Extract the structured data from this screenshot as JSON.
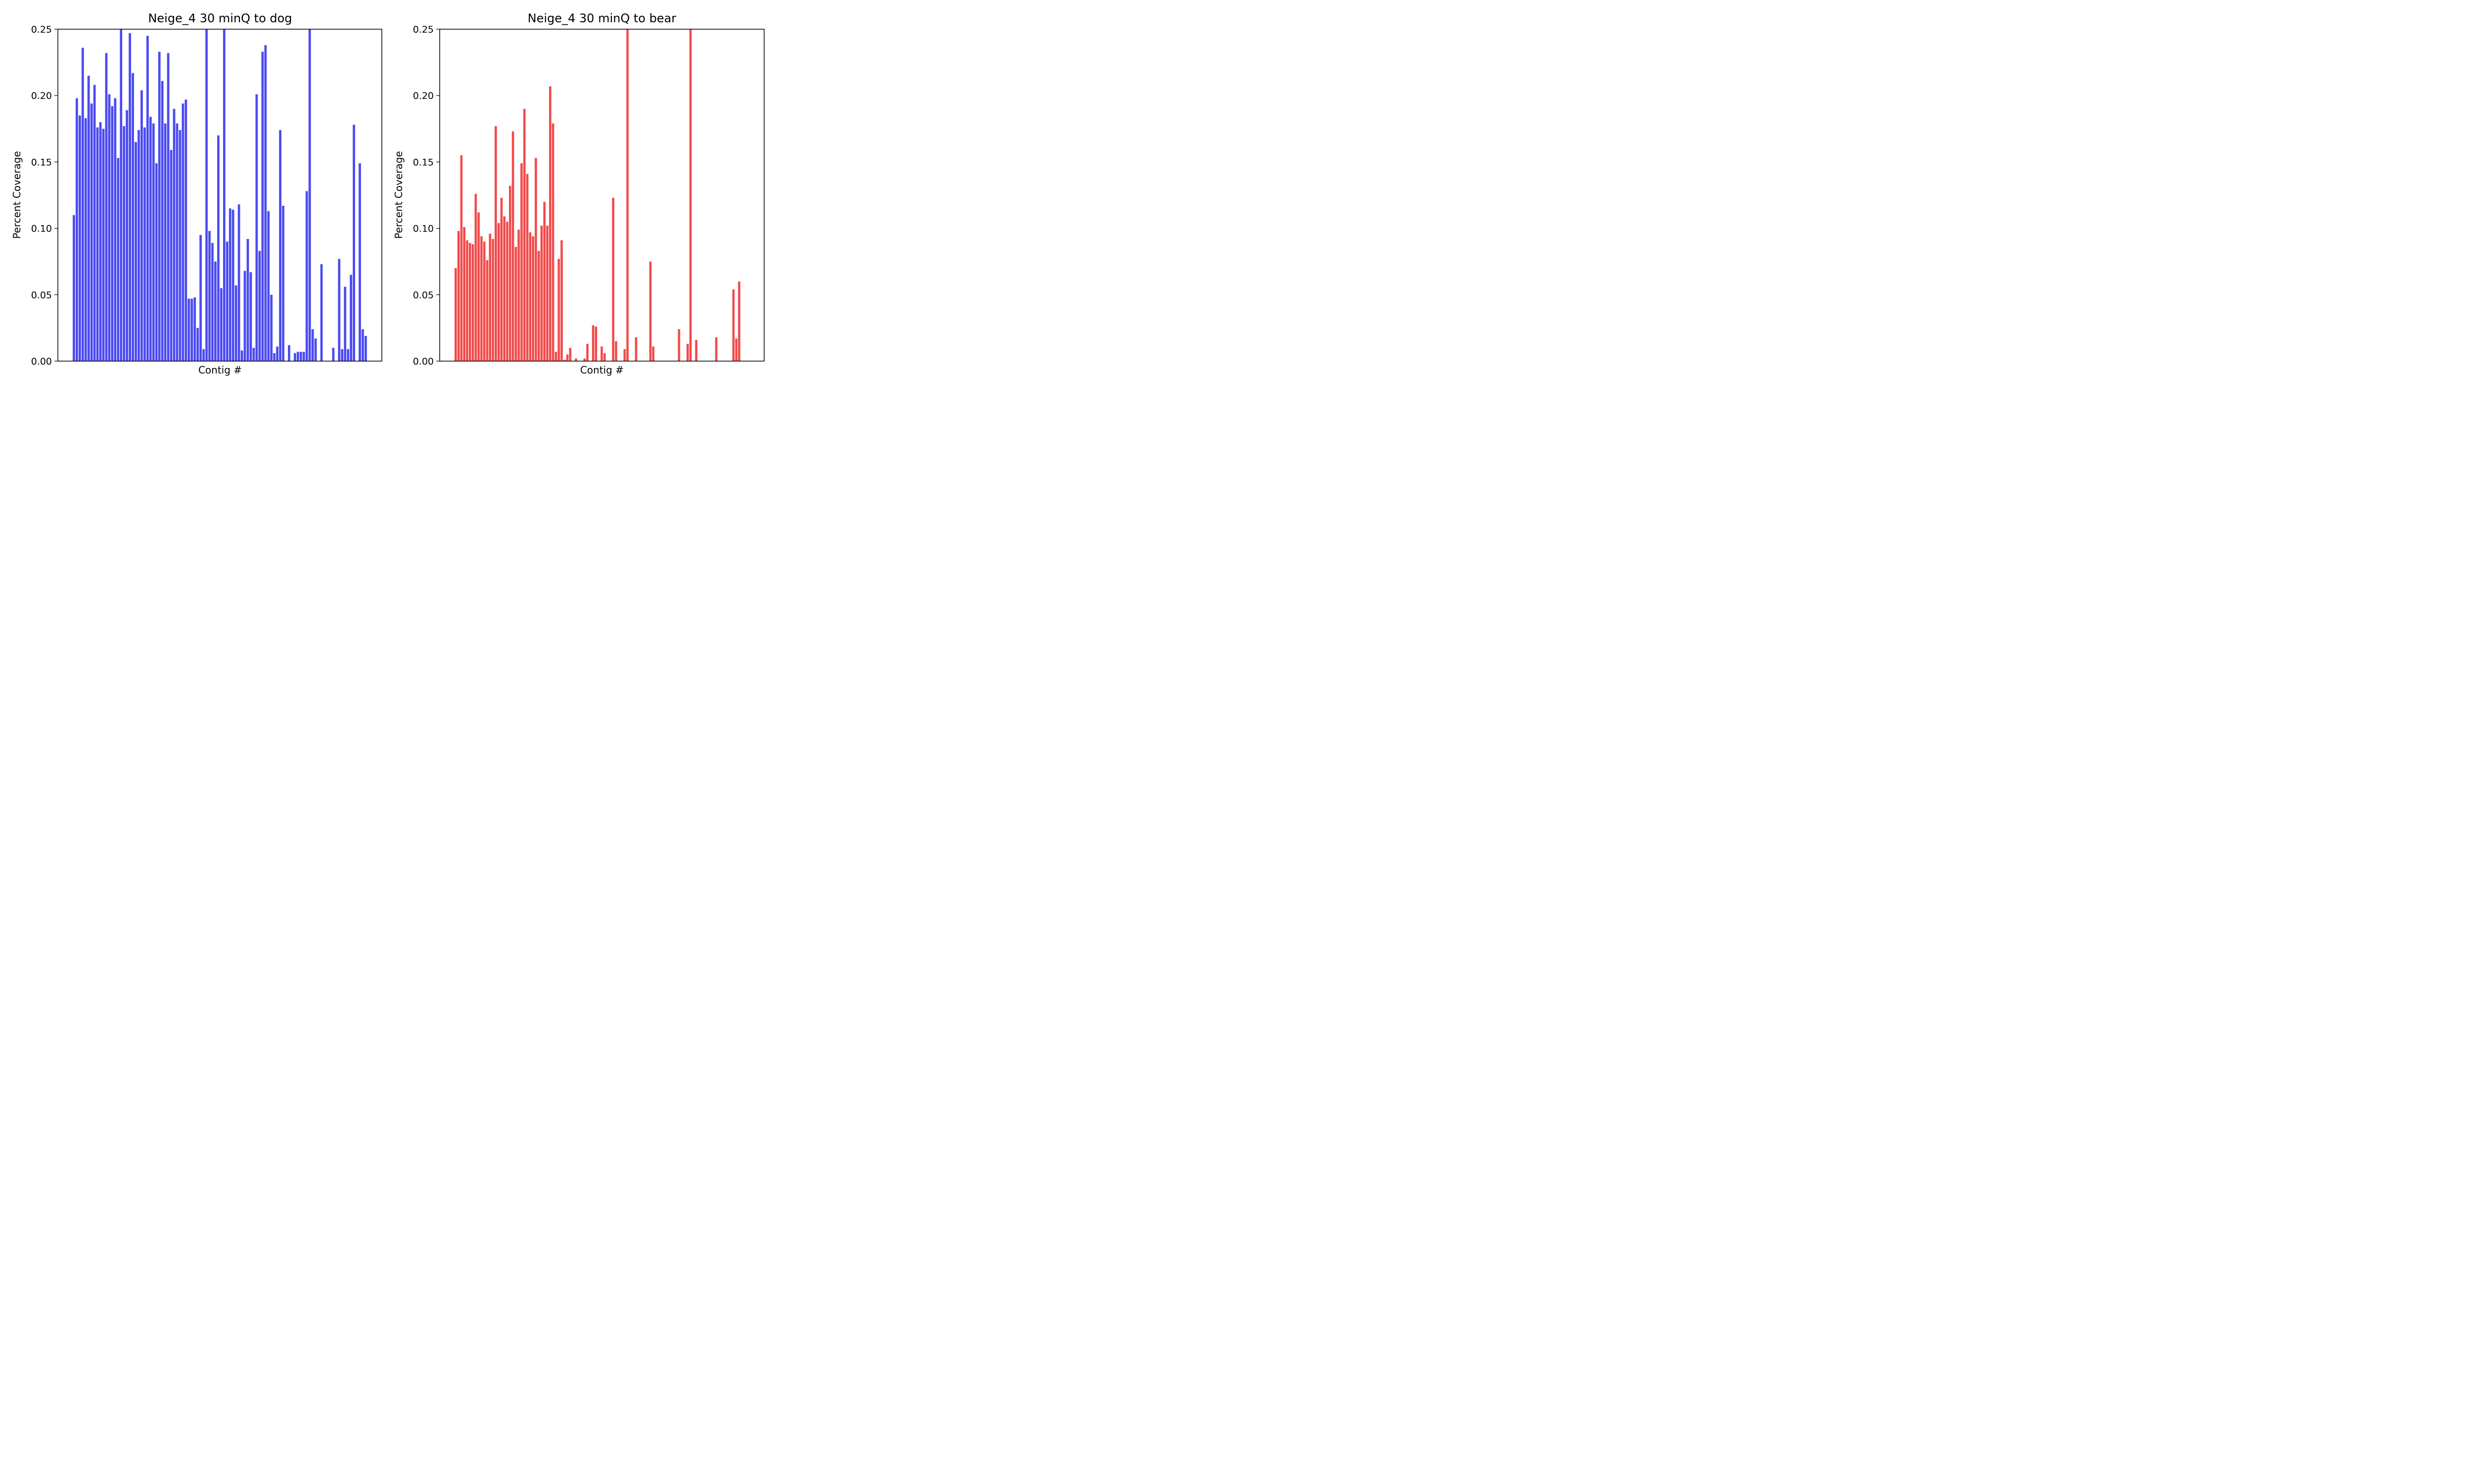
{
  "chart_data": [
    {
      "type": "bar",
      "title": "Neige_4 30 minQ to dog",
      "xlabel": "Contig #",
      "ylabel": "Percent Coverage",
      "ylim": [
        0,
        0.25
      ],
      "yticks": [
        "0.00",
        "0.05",
        "0.10",
        "0.15",
        "0.20",
        "0.25"
      ],
      "grid": false,
      "color": "#4b4bf2",
      "values": [
        0.11,
        0.198,
        0.185,
        0.236,
        0.183,
        0.215,
        0.194,
        0.208,
        0.176,
        0.18,
        0.175,
        0.232,
        0.201,
        0.192,
        0.198,
        0.153,
        0.25,
        0.177,
        0.189,
        0.247,
        0.217,
        0.165,
        0.174,
        0.204,
        0.176,
        0.245,
        0.184,
        0.179,
        0.149,
        0.233,
        0.211,
        0.179,
        0.232,
        0.159,
        0.19,
        0.179,
        0.174,
        0.194,
        0.197,
        0.047,
        0.047,
        0.048,
        0.025,
        0.095,
        0.009,
        0.25,
        0.098,
        0.089,
        0.075,
        0.17,
        0.055,
        0.25,
        0.09,
        0.115,
        0.114,
        0.057,
        0.118,
        0.008,
        0.068,
        0.092,
        0.067,
        0.01,
        0.201,
        0.083,
        0.233,
        0.238,
        0.113,
        0.05,
        0.006,
        0.011,
        0.174,
        0.117,
        0,
        0.012,
        0,
        0.006,
        0.007,
        0.007,
        0.007,
        0.128,
        0.25,
        0.024,
        0.017,
        0,
        0.073,
        0,
        0,
        0,
        0.01,
        0,
        0.077,
        0.009,
        0.056,
        0.009,
        0.065,
        0.178,
        0,
        0.149,
        0.024,
        0.019
      ]
    },
    {
      "type": "bar",
      "title": "Neige_4 30 minQ to bear",
      "xlabel": "Contig #",
      "ylabel": "Percent Coverage",
      "ylim": [
        0,
        0.25
      ],
      "yticks": [
        "0.00",
        "0.05",
        "0.10",
        "0.15",
        "0.20",
        "0.25"
      ],
      "grid": false,
      "color": "#f24b4b",
      "values": [
        0.07,
        0.098,
        0.155,
        0.101,
        0.091,
        0.089,
        0.088,
        0.126,
        0.112,
        0.094,
        0.09,
        0.076,
        0.096,
        0.092,
        0.177,
        0.104,
        0.123,
        0.109,
        0.105,
        0.132,
        0.173,
        0.086,
        0.099,
        0.149,
        0.19,
        0.141,
        0.097,
        0.094,
        0.153,
        0.083,
        0.102,
        0.12,
        0.102,
        0.207,
        0.179,
        0.007,
        0.077,
        0.091,
        0.001,
        0.005,
        0.01,
        0,
        0.002,
        0,
        0,
        0.002,
        0.013,
        0,
        0.027,
        0.026,
        0,
        0.011,
        0.006,
        0,
        0,
        0.123,
        0.015,
        0,
        0,
        0.009,
        0.25,
        0,
        0,
        0.018,
        0,
        0,
        0,
        0,
        0.075,
        0.011,
        0,
        0,
        0,
        0,
        0,
        0,
        0,
        0,
        0.024,
        0,
        0,
        0.013,
        0.25,
        0,
        0.016,
        0,
        0,
        0,
        0,
        0,
        0,
        0.018,
        0,
        0,
        0,
        0,
        0,
        0.054,
        0.017,
        0.06
      ]
    }
  ]
}
